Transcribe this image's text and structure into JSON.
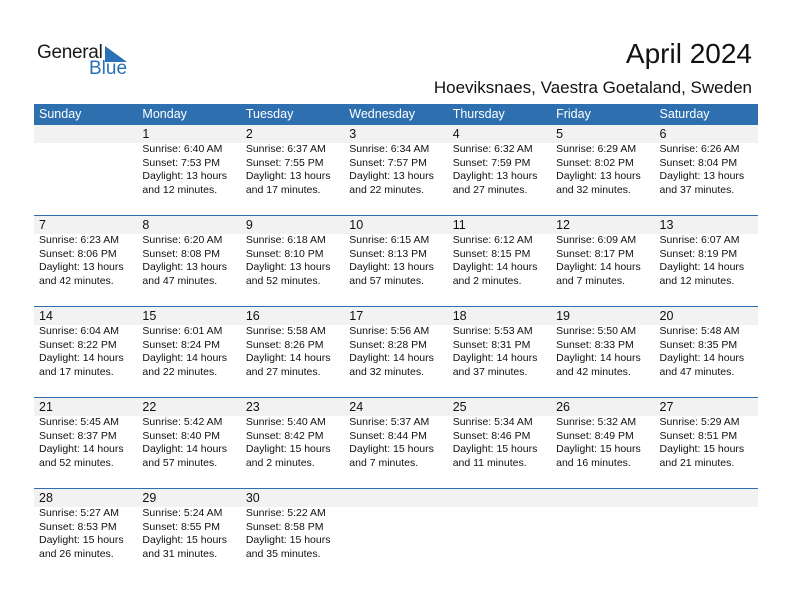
{
  "logo": {
    "general": "General",
    "blue": "Blue",
    "accent": "#2a72b5"
  },
  "title": "April 2024",
  "subtitle": "Hoeviksnaes, Vaestra Goetaland, Sweden",
  "header_color": "#2e6fb0",
  "days": [
    "Sunday",
    "Monday",
    "Tuesday",
    "Wednesday",
    "Thursday",
    "Friday",
    "Saturday"
  ],
  "weeks": [
    [
      null,
      {
        "day": "1",
        "sunrise": "Sunrise: 6:40 AM",
        "sunset": "Sunset: 7:53 PM",
        "daylight1": "Daylight: 13 hours",
        "daylight2": "and 12 minutes."
      },
      {
        "day": "2",
        "sunrise": "Sunrise: 6:37 AM",
        "sunset": "Sunset: 7:55 PM",
        "daylight1": "Daylight: 13 hours",
        "daylight2": "and 17 minutes."
      },
      {
        "day": "3",
        "sunrise": "Sunrise: 6:34 AM",
        "sunset": "Sunset: 7:57 PM",
        "daylight1": "Daylight: 13 hours",
        "daylight2": "and 22 minutes."
      },
      {
        "day": "4",
        "sunrise": "Sunrise: 6:32 AM",
        "sunset": "Sunset: 7:59 PM",
        "daylight1": "Daylight: 13 hours",
        "daylight2": "and 27 minutes."
      },
      {
        "day": "5",
        "sunrise": "Sunrise: 6:29 AM",
        "sunset": "Sunset: 8:02 PM",
        "daylight1": "Daylight: 13 hours",
        "daylight2": "and 32 minutes."
      },
      {
        "day": "6",
        "sunrise": "Sunrise: 6:26 AM",
        "sunset": "Sunset: 8:04 PM",
        "daylight1": "Daylight: 13 hours",
        "daylight2": "and 37 minutes."
      }
    ],
    [
      {
        "day": "7",
        "sunrise": "Sunrise: 6:23 AM",
        "sunset": "Sunset: 8:06 PM",
        "daylight1": "Daylight: 13 hours",
        "daylight2": "and 42 minutes."
      },
      {
        "day": "8",
        "sunrise": "Sunrise: 6:20 AM",
        "sunset": "Sunset: 8:08 PM",
        "daylight1": "Daylight: 13 hours",
        "daylight2": "and 47 minutes."
      },
      {
        "day": "9",
        "sunrise": "Sunrise: 6:18 AM",
        "sunset": "Sunset: 8:10 PM",
        "daylight1": "Daylight: 13 hours",
        "daylight2": "and 52 minutes."
      },
      {
        "day": "10",
        "sunrise": "Sunrise: 6:15 AM",
        "sunset": "Sunset: 8:13 PM",
        "daylight1": "Daylight: 13 hours",
        "daylight2": "and 57 minutes."
      },
      {
        "day": "11",
        "sunrise": "Sunrise: 6:12 AM",
        "sunset": "Sunset: 8:15 PM",
        "daylight1": "Daylight: 14 hours",
        "daylight2": "and 2 minutes."
      },
      {
        "day": "12",
        "sunrise": "Sunrise: 6:09 AM",
        "sunset": "Sunset: 8:17 PM",
        "daylight1": "Daylight: 14 hours",
        "daylight2": "and 7 minutes."
      },
      {
        "day": "13",
        "sunrise": "Sunrise: 6:07 AM",
        "sunset": "Sunset: 8:19 PM",
        "daylight1": "Daylight: 14 hours",
        "daylight2": "and 12 minutes."
      }
    ],
    [
      {
        "day": "14",
        "sunrise": "Sunrise: 6:04 AM",
        "sunset": "Sunset: 8:22 PM",
        "daylight1": "Daylight: 14 hours",
        "daylight2": "and 17 minutes."
      },
      {
        "day": "15",
        "sunrise": "Sunrise: 6:01 AM",
        "sunset": "Sunset: 8:24 PM",
        "daylight1": "Daylight: 14 hours",
        "daylight2": "and 22 minutes."
      },
      {
        "day": "16",
        "sunrise": "Sunrise: 5:58 AM",
        "sunset": "Sunset: 8:26 PM",
        "daylight1": "Daylight: 14 hours",
        "daylight2": "and 27 minutes."
      },
      {
        "day": "17",
        "sunrise": "Sunrise: 5:56 AM",
        "sunset": "Sunset: 8:28 PM",
        "daylight1": "Daylight: 14 hours",
        "daylight2": "and 32 minutes."
      },
      {
        "day": "18",
        "sunrise": "Sunrise: 5:53 AM",
        "sunset": "Sunset: 8:31 PM",
        "daylight1": "Daylight: 14 hours",
        "daylight2": "and 37 minutes."
      },
      {
        "day": "19",
        "sunrise": "Sunrise: 5:50 AM",
        "sunset": "Sunset: 8:33 PM",
        "daylight1": "Daylight: 14 hours",
        "daylight2": "and 42 minutes."
      },
      {
        "day": "20",
        "sunrise": "Sunrise: 5:48 AM",
        "sunset": "Sunset: 8:35 PM",
        "daylight1": "Daylight: 14 hours",
        "daylight2": "and 47 minutes."
      }
    ],
    [
      {
        "day": "21",
        "sunrise": "Sunrise: 5:45 AM",
        "sunset": "Sunset: 8:37 PM",
        "daylight1": "Daylight: 14 hours",
        "daylight2": "and 52 minutes."
      },
      {
        "day": "22",
        "sunrise": "Sunrise: 5:42 AM",
        "sunset": "Sunset: 8:40 PM",
        "daylight1": "Daylight: 14 hours",
        "daylight2": "and 57 minutes."
      },
      {
        "day": "23",
        "sunrise": "Sunrise: 5:40 AM",
        "sunset": "Sunset: 8:42 PM",
        "daylight1": "Daylight: 15 hours",
        "daylight2": "and 2 minutes."
      },
      {
        "day": "24",
        "sunrise": "Sunrise: 5:37 AM",
        "sunset": "Sunset: 8:44 PM",
        "daylight1": "Daylight: 15 hours",
        "daylight2": "and 7 minutes."
      },
      {
        "day": "25",
        "sunrise": "Sunrise: 5:34 AM",
        "sunset": "Sunset: 8:46 PM",
        "daylight1": "Daylight: 15 hours",
        "daylight2": "and 11 minutes."
      },
      {
        "day": "26",
        "sunrise": "Sunrise: 5:32 AM",
        "sunset": "Sunset: 8:49 PM",
        "daylight1": "Daylight: 15 hours",
        "daylight2": "and 16 minutes."
      },
      {
        "day": "27",
        "sunrise": "Sunrise: 5:29 AM",
        "sunset": "Sunset: 8:51 PM",
        "daylight1": "Daylight: 15 hours",
        "daylight2": "and 21 minutes."
      }
    ],
    [
      {
        "day": "28",
        "sunrise": "Sunrise: 5:27 AM",
        "sunset": "Sunset: 8:53 PM",
        "daylight1": "Daylight: 15 hours",
        "daylight2": "and 26 minutes."
      },
      {
        "day": "29",
        "sunrise": "Sunrise: 5:24 AM",
        "sunset": "Sunset: 8:55 PM",
        "daylight1": "Daylight: 15 hours",
        "daylight2": "and 31 minutes."
      },
      {
        "day": "30",
        "sunrise": "Sunrise: 5:22 AM",
        "sunset": "Sunset: 8:58 PM",
        "daylight1": "Daylight: 15 hours",
        "daylight2": "and 35 minutes."
      },
      null,
      null,
      null,
      null
    ]
  ]
}
